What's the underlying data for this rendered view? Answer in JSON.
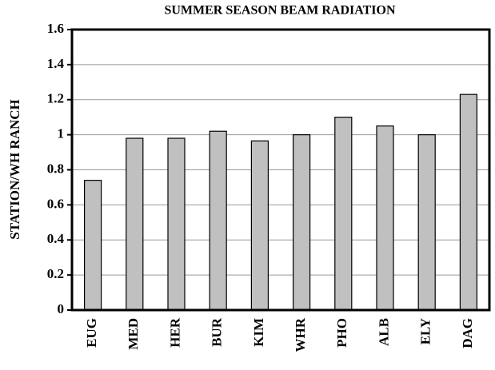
{
  "chart_data": {
    "type": "bar",
    "title": "SUMMER SEASON BEAM RADIATION",
    "y_label": "STATION/WH RANCH",
    "categories": [
      "EUG",
      "MED",
      "HER",
      "BUR",
      "KIM",
      "WHR",
      "PHO",
      "ALB",
      "ELY",
      "DAG"
    ],
    "values": [
      0.74,
      0.98,
      0.98,
      1.02,
      0.965,
      1.0,
      1.1,
      1.05,
      1.0,
      1.23
    ],
    "color": "#c0c0c0",
    "ylim": [
      0,
      1.6
    ],
    "yticks": [
      0,
      0.2,
      0.4,
      0.6,
      0.8,
      1,
      1.2,
      1.4,
      1.6
    ],
    "grid": true
  }
}
